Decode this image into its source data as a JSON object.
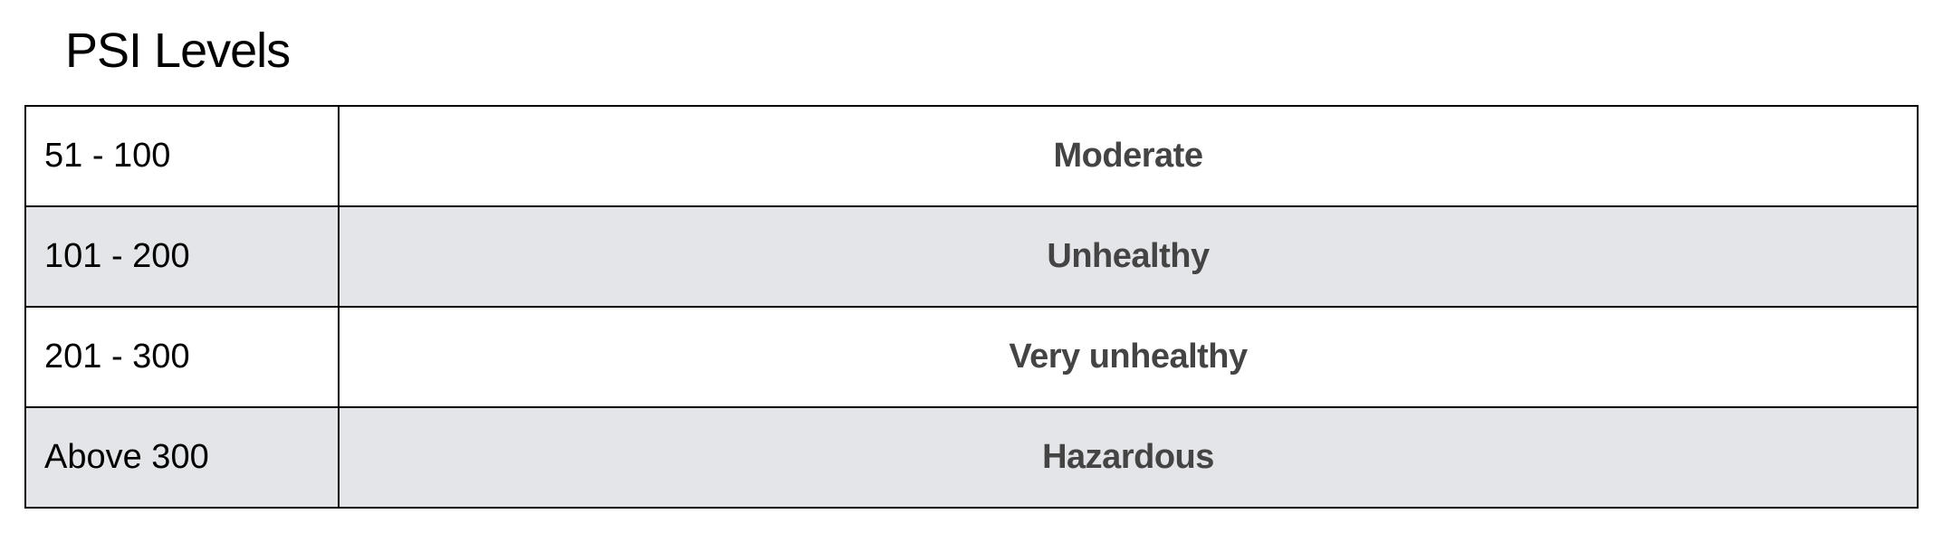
{
  "title": "PSI Levels",
  "rows": [
    {
      "range": "51 - 100",
      "level": "Moderate"
    },
    {
      "range": "101 - 200",
      "level": "Unhealthy"
    },
    {
      "range": "201 - 300",
      "level": "Very unhealthy"
    },
    {
      "range": "Above 300",
      "level": "Hazardous"
    }
  ],
  "colors": {
    "stripe": "#e4e5e8",
    "level_text": "#444444",
    "border": "#000000"
  }
}
